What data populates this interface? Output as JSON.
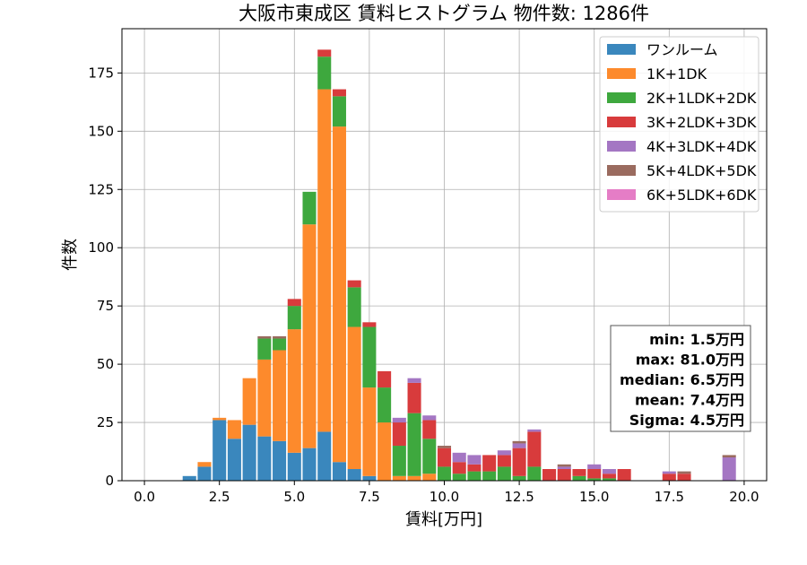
{
  "chart_data": {
    "type": "bar",
    "stacked": true,
    "title": "大阪市東成区 賃料ヒストグラム  物件数: 1286件",
    "xlabel": "賃料[万円]",
    "ylabel": "件数",
    "xlim": [
      -0.75,
      20.75
    ],
    "ylim": [
      0,
      194
    ],
    "xticks": [
      0,
      2.5,
      5,
      7.5,
      10,
      12.5,
      15,
      17.5,
      20
    ],
    "xtick_labels": [
      "0.0",
      "2.5",
      "5.0",
      "7.5",
      "10.0",
      "12.5",
      "15.0",
      "17.5",
      "20.0"
    ],
    "yticks": [
      0,
      25,
      50,
      75,
      100,
      125,
      150,
      175
    ],
    "ytick_labels": [
      "0",
      "25",
      "50",
      "75",
      "100",
      "125",
      "150",
      "175"
    ],
    "grid": true,
    "legend_position": "top-right",
    "bin_width": 0.5,
    "x": [
      1.5,
      2.0,
      2.5,
      3.0,
      3.5,
      4.0,
      4.5,
      5.0,
      5.5,
      6.0,
      6.5,
      7.0,
      7.5,
      8.0,
      8.5,
      9.0,
      9.5,
      10.0,
      10.5,
      11.0,
      11.5,
      12.0,
      12.5,
      13.0,
      13.5,
      14.0,
      14.5,
      15.0,
      15.5,
      16.0,
      17.5,
      18.0,
      19.5
    ],
    "series": [
      {
        "name": "ワンルーム",
        "color": "#3a87bd",
        "values": [
          2,
          6,
          26,
          18,
          24,
          19,
          17,
          12,
          14,
          21,
          8,
          5,
          2,
          0,
          0,
          0,
          0,
          0,
          0,
          0,
          0,
          0,
          0,
          0,
          0,
          0,
          0,
          0,
          0,
          0,
          0,
          0,
          0
        ]
      },
      {
        "name": "1K+1DK",
        "color": "#fd8a2c",
        "values": [
          0,
          2,
          1,
          8,
          20,
          33,
          39,
          53,
          96,
          147,
          144,
          61,
          38,
          25,
          2,
          2,
          3,
          0,
          0,
          0,
          0,
          0,
          0,
          0,
          0,
          0,
          0,
          0,
          0,
          0,
          0,
          0,
          0
        ]
      },
      {
        "name": "2K+1LDK+2DK",
        "color": "#3ea83e",
        "values": [
          0,
          0,
          0,
          0,
          0,
          9,
          5,
          10,
          14,
          14,
          13,
          17,
          26,
          15,
          13,
          27,
          15,
          6,
          3,
          4,
          4,
          6,
          2,
          6,
          0,
          0,
          2,
          1,
          1,
          0,
          0,
          0,
          0
        ]
      },
      {
        "name": "3K+2LDK+3DK",
        "color": "#d83b3c",
        "values": [
          0,
          0,
          0,
          0,
          0,
          0,
          0,
          3,
          0,
          3,
          3,
          3,
          2,
          7,
          10,
          13,
          8,
          8,
          5,
          3,
          7,
          5,
          12,
          15,
          5,
          5,
          3,
          4,
          2,
          5,
          3,
          3,
          0
        ]
      },
      {
        "name": "4K+3LDK+4DK",
        "color": "#a476c3",
        "values": [
          0,
          0,
          0,
          0,
          0,
          0,
          0,
          0,
          0,
          0,
          0,
          0,
          0,
          0,
          2,
          2,
          2,
          0,
          4,
          4,
          0,
          2,
          2,
          1,
          0,
          1,
          0,
          2,
          2,
          0,
          1,
          0,
          10
        ]
      },
      {
        "name": "5K+4LDK+5DK",
        "color": "#9a6b5f",
        "values": [
          0,
          0,
          0,
          0,
          0,
          1,
          1,
          0,
          0,
          0,
          0,
          0,
          0,
          0,
          0,
          0,
          0,
          1,
          0,
          0,
          0,
          0,
          1,
          0,
          0,
          1,
          0,
          0,
          0,
          0,
          0,
          1,
          1
        ]
      },
      {
        "name": "6K+5LDK+6DK",
        "color": "#e57dc6",
        "values": [
          0,
          0,
          0,
          0,
          0,
          0,
          0,
          0,
          0,
          0,
          0,
          0,
          0,
          0,
          0,
          0,
          0,
          0,
          0,
          0,
          0,
          0,
          0,
          0,
          0,
          0,
          0,
          0,
          0,
          0,
          0,
          0,
          0
        ]
      }
    ],
    "annotation": [
      "min: 1.5万円",
      "max: 81.0万円",
      "median: 6.5万円",
      "mean: 7.4万円",
      "Sigma: 4.5万円"
    ]
  }
}
